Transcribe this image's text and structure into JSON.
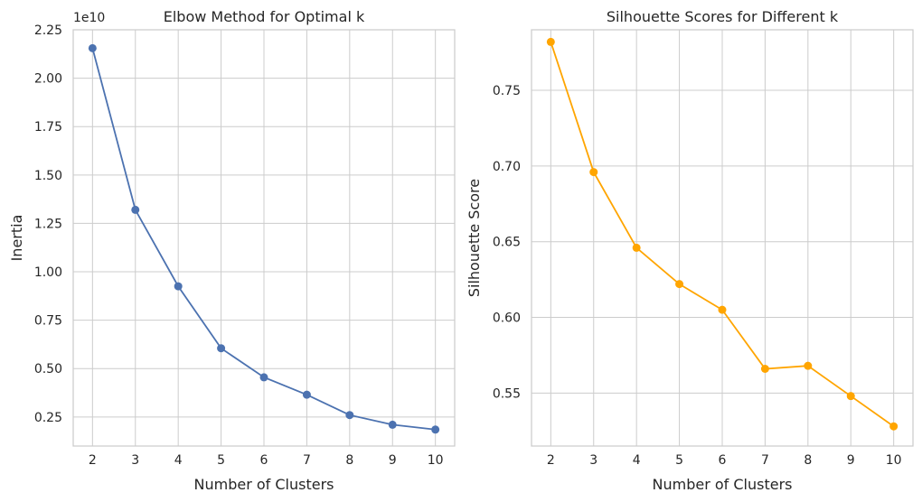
{
  "chart_data": [
    {
      "type": "line",
      "title": "Elbow Method for Optimal k",
      "xlabel": "Number of Clusters",
      "ylabel": "Inertia",
      "y_offset_label": "1e10",
      "x": [
        2,
        3,
        4,
        5,
        6,
        7,
        8,
        9,
        10
      ],
      "x_ticks": [
        "2",
        "3",
        "4",
        "5",
        "6",
        "7",
        "8",
        "9",
        "10"
      ],
      "y_ticks": [
        0.25,
        0.5,
        0.75,
        1.0,
        1.25,
        1.5,
        1.75,
        2.0,
        2.25
      ],
      "y_tick_labels": [
        "0.25",
        "0.50",
        "0.75",
        "1.00",
        "1.25",
        "1.50",
        "1.75",
        "2.00",
        "2.25"
      ],
      "xlim": [
        1.55,
        10.45
      ],
      "ylim": [
        0.1,
        2.25
      ],
      "grid": true,
      "series": [
        {
          "values": [
            2.155,
            1.32,
            0.925,
            0.605,
            0.455,
            0.365,
            0.26,
            0.21,
            0.185
          ],
          "color": "#4c72b0",
          "marker": "circle"
        }
      ]
    },
    {
      "type": "line",
      "title": "Silhouette Scores for Different k",
      "xlabel": "Number of Clusters",
      "ylabel": "Silhouette Score",
      "x": [
        2,
        3,
        4,
        5,
        6,
        7,
        8,
        9,
        10
      ],
      "x_ticks": [
        "2",
        "3",
        "4",
        "5",
        "6",
        "7",
        "8",
        "9",
        "10"
      ],
      "y_ticks": [
        0.55,
        0.6,
        0.65,
        0.7,
        0.75
      ],
      "y_tick_labels": [
        "0.55",
        "0.60",
        "0.65",
        "0.70",
        "0.75"
      ],
      "xlim": [
        1.55,
        10.45
      ],
      "ylim": [
        0.515,
        0.79
      ],
      "grid": true,
      "series": [
        {
          "values": [
            0.782,
            0.696,
            0.646,
            0.622,
            0.605,
            0.566,
            0.568,
            0.548,
            0.528
          ],
          "color": "#ffa500",
          "marker": "circle"
        }
      ]
    }
  ]
}
